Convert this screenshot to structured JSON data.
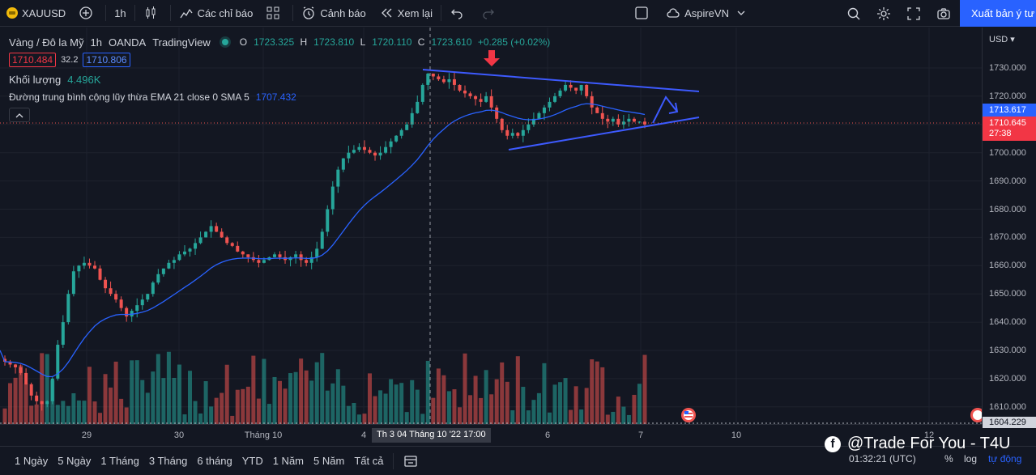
{
  "toolbar": {
    "symbol": "XAUUSD",
    "interval": "1h",
    "indicators_label": "Các chỉ báo",
    "alerts_label": "Cảnh báo",
    "replay_label": "Xem lại",
    "layout_name": "AspireVN",
    "publish_label": "Xuất bản ý tư"
  },
  "legend": {
    "symbol_name": "Vàng / Đô la Mỹ",
    "interval": "1h",
    "broker": "OANDA",
    "platform": "TradingView",
    "o_label": "O",
    "o_value": "1723.325",
    "h_label": "H",
    "h_value": "1723.810",
    "l_label": "L",
    "l_value": "1720.110",
    "c_label": "C",
    "c_value": "1723.610",
    "change": "+0.285 (+0.02%)",
    "bid": "1710.484",
    "spread": "32.2",
    "ask": "1710.806",
    "volume_label": "Khối lượng",
    "volume_value": "4.496K",
    "ema_label": "Đường trung bình cộng lũy thừa EMA 21 close 0 SMA 5",
    "ema_value": "1707.432"
  },
  "price_axis": {
    "currency": "USD",
    "ticks": [
      "1730.000",
      "1720.000",
      "1710.000",
      "1700.000",
      "1690.000",
      "1680.000",
      "1670.000",
      "1660.000",
      "1650.000",
      "1640.000",
      "1630.000",
      "1620.000",
      "1610.000"
    ],
    "ema_tag": "1713.617",
    "price_tag": "1710.645",
    "countdown": "27:38",
    "bottom_tag": "1604.229"
  },
  "time_axis": {
    "labels": [
      "29",
      "30",
      "Tháng 10",
      "4",
      "6",
      "7",
      "10",
      "12"
    ],
    "crosshair": "Th 3 04 Tháng 10 '22   17:00"
  },
  "bottom_bar": {
    "ranges": [
      "1 Ngày",
      "5 Ngày",
      "1 Tháng",
      "3 Tháng",
      "6 tháng",
      "YTD",
      "1 Năm",
      "5 Năm",
      "Tất cả"
    ],
    "clock": "01:32:21 (UTC)",
    "percent": "%",
    "log": "log",
    "auto": "tự động"
  },
  "watermark": "@Trade For You - T4U",
  "colors": {
    "up": "#26a69a",
    "down": "#ef5350",
    "ema": "#2962ff",
    "trend": "#3d5afe",
    "bg": "#131722",
    "accent": "#2962ff"
  },
  "chart_data": {
    "type": "candlestick",
    "ylim": [
      1600,
      1735
    ],
    "ema_period": 21,
    "close": [
      1626,
      1625,
      1624,
      1622,
      1618,
      1614,
      1612,
      1611,
      1612,
      1620,
      1632,
      1640,
      1650,
      1658,
      1660,
      1661,
      1660,
      1659,
      1655,
      1652,
      1650,
      1648,
      1645,
      1642,
      1644,
      1646,
      1648,
      1650,
      1654,
      1657,
      1659,
      1661,
      1662,
      1664,
      1665,
      1666,
      1668,
      1670,
      1672,
      1674,
      1672,
      1670,
      1668,
      1667,
      1665,
      1664,
      1663,
      1662,
      1661,
      1662,
      1663,
      1664,
      1663,
      1662,
      1663,
      1664,
      1662,
      1661,
      1663,
      1666,
      1672,
      1680,
      1688,
      1694,
      1698,
      1700,
      1701,
      1702,
      1701,
      1700,
      1699,
      1700,
      1702,
      1704,
      1706,
      1708,
      1710,
      1714,
      1718,
      1724,
      1728,
      1727,
      1726,
      1725,
      1726,
      1724,
      1722,
      1721,
      1720,
      1719,
      1718,
      1720,
      1716,
      1712,
      1708,
      1706,
      1707,
      1706,
      1708,
      1710,
      1712,
      1714,
      1716,
      1718,
      1720,
      1722,
      1724,
      1723,
      1722,
      1724,
      1720,
      1716,
      1714,
      1712,
      1711,
      1712,
      1710,
      1711,
      1712,
      1711,
      1711,
      1710
    ]
  }
}
